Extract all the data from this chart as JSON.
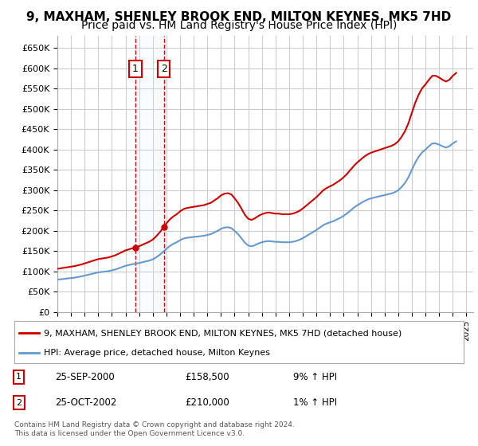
{
  "title": "9, MAXHAM, SHENLEY BROOK END, MILTON KEYNES, MK5 7HD",
  "subtitle": "Price paid vs. HM Land Registry's House Price Index (HPI)",
  "title_fontsize": 11,
  "subtitle_fontsize": 10,
  "ylabel": "",
  "ylim": [
    0,
    680000
  ],
  "yticks": [
    0,
    50000,
    100000,
    150000,
    200000,
    250000,
    300000,
    350000,
    400000,
    450000,
    500000,
    550000,
    600000,
    650000
  ],
  "ytick_labels": [
    "£0",
    "£50K",
    "£100K",
    "£150K",
    "£200K",
    "£250K",
    "£300K",
    "£350K",
    "£400K",
    "£450K",
    "£500K",
    "£550K",
    "£600K",
    "£650K"
  ],
  "background_color": "#ffffff",
  "grid_color": "#cccccc",
  "hpi_color": "#6699cc",
  "price_color": "#cc0000",
  "hpi_years": [
    1995,
    1995.25,
    1995.5,
    1995.75,
    1996,
    1996.25,
    1996.5,
    1996.75,
    1997,
    1997.25,
    1997.5,
    1997.75,
    1998,
    1998.25,
    1998.5,
    1998.75,
    1999,
    1999.25,
    1999.5,
    1999.75,
    2000,
    2000.25,
    2000.5,
    2000.75,
    2001,
    2001.25,
    2001.5,
    2001.75,
    2002,
    2002.25,
    2002.5,
    2002.75,
    2003,
    2003.25,
    2003.5,
    2003.75,
    2004,
    2004.25,
    2004.5,
    2004.75,
    2005,
    2005.25,
    2005.5,
    2005.75,
    2006,
    2006.25,
    2006.5,
    2006.75,
    2007,
    2007.25,
    2007.5,
    2007.75,
    2008,
    2008.25,
    2008.5,
    2008.75,
    2009,
    2009.25,
    2009.5,
    2009.75,
    2010,
    2010.25,
    2010.5,
    2010.75,
    2011,
    2011.25,
    2011.5,
    2011.75,
    2012,
    2012.25,
    2012.5,
    2012.75,
    2013,
    2013.25,
    2013.5,
    2013.75,
    2014,
    2014.25,
    2014.5,
    2014.75,
    2015,
    2015.25,
    2015.5,
    2015.75,
    2016,
    2016.25,
    2016.5,
    2016.75,
    2017,
    2017.25,
    2017.5,
    2017.75,
    2018,
    2018.25,
    2018.5,
    2018.75,
    2019,
    2019.25,
    2019.5,
    2019.75,
    2020,
    2020.25,
    2020.5,
    2020.75,
    2021,
    2021.25,
    2021.5,
    2021.75,
    2022,
    2022.25,
    2022.5,
    2022.75,
    2023,
    2023.25,
    2023.5,
    2023.75,
    2024,
    2024.25
  ],
  "hpi_values": [
    80000,
    81000,
    82000,
    83000,
    84000,
    85000,
    86500,
    88000,
    90000,
    92000,
    94000,
    96000,
    98000,
    99000,
    100000,
    101000,
    103000,
    105000,
    108000,
    111000,
    114000,
    116000,
    118000,
    119000,
    121000,
    123000,
    125000,
    127000,
    130000,
    135000,
    141000,
    148000,
    156000,
    163000,
    168000,
    172000,
    177000,
    181000,
    183000,
    184000,
    185000,
    186000,
    187000,
    188000,
    190000,
    192000,
    196000,
    200000,
    205000,
    208000,
    209000,
    207000,
    200000,
    192000,
    182000,
    171000,
    164000,
    162000,
    165000,
    169000,
    172000,
    174000,
    175000,
    174000,
    173000,
    173000,
    172000,
    172000,
    172000,
    173000,
    175000,
    178000,
    182000,
    187000,
    192000,
    197000,
    202000,
    208000,
    214000,
    218000,
    221000,
    224000,
    228000,
    232000,
    237000,
    243000,
    250000,
    257000,
    263000,
    268000,
    273000,
    277000,
    280000,
    282000,
    284000,
    286000,
    288000,
    290000,
    292000,
    295000,
    300000,
    308000,
    318000,
    332000,
    350000,
    368000,
    382000,
    393000,
    400000,
    408000,
    415000,
    415000,
    412000,
    408000,
    405000,
    408000,
    415000,
    420000
  ],
  "sale_years": [
    2000.73,
    2002.81
  ],
  "sale_values": [
    158500,
    210000
  ],
  "sale_labels": [
    "1",
    "2"
  ],
  "annotation1": {
    "num": "1",
    "date": "25-SEP-2000",
    "price": "£158,500",
    "hpi_diff": "9% ↑ HPI"
  },
  "annotation2": {
    "num": "2",
    "date": "25-OCT-2002",
    "price": "£210,000",
    "hpi_diff": "1% ↑ HPI"
  },
  "legend_label1": "9, MAXHAM, SHENLEY BROOK END, MILTON KEYNES, MK5 7HD (detached house)",
  "legend_label2": "HPI: Average price, detached house, Milton Keynes",
  "copyright_text": "Contains HM Land Registry data © Crown copyright and database right 2024.\nThis data is licensed under the Open Government Licence v3.0.",
  "marker_box_color": "#cc0000",
  "highlight_color": "#ddeeff",
  "xtick_years": [
    1995,
    1996,
    1997,
    1998,
    1999,
    2000,
    2001,
    2002,
    2003,
    2004,
    2005,
    2006,
    2007,
    2008,
    2009,
    2010,
    2011,
    2012,
    2013,
    2014,
    2015,
    2016,
    2017,
    2018,
    2019,
    2020,
    2021,
    2022,
    2023,
    2024,
    2025
  ]
}
